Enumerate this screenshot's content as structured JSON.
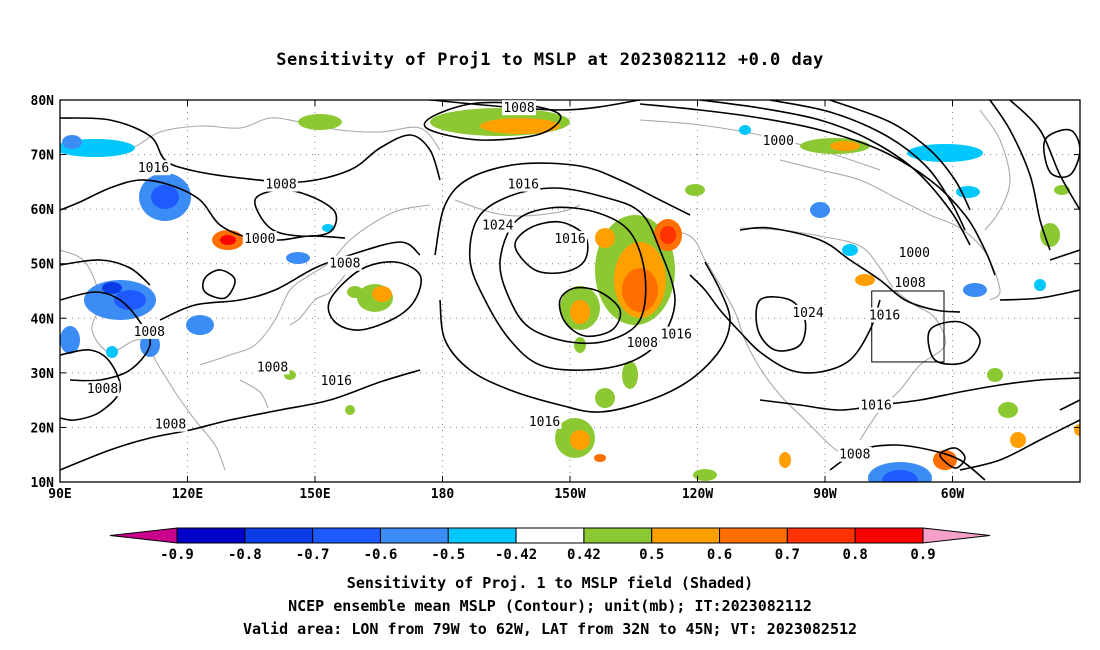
{
  "title": "Sensitivity of Proj1 to MSLP at 2023082112 +0.0 day",
  "lat_labels": [
    "80N",
    "70N",
    "60N",
    "50N",
    "40N",
    "30N",
    "20N",
    "10N"
  ],
  "lon_labels": [
    "90E",
    "120E",
    "150E",
    "180",
    "150W",
    "120W",
    "90W",
    "60W"
  ],
  "contour_labels": [
    {
      "text": "1008",
      "lon": 198,
      "lat": 78.5
    },
    {
      "text": "1000",
      "lon": 259,
      "lat": 72.5
    },
    {
      "text": "1016",
      "lon": 112,
      "lat": 67.5
    },
    {
      "text": "1008",
      "lon": 142,
      "lat": 64.5
    },
    {
      "text": "1016",
      "lon": 199,
      "lat": 64.5
    },
    {
      "text": "1000",
      "lon": 137,
      "lat": 54.5
    },
    {
      "text": "1024",
      "lon": 193,
      "lat": 57.0
    },
    {
      "text": "1016",
      "lon": 210,
      "lat": 54.5
    },
    {
      "text": "1000",
      "lon": 291,
      "lat": 52.0
    },
    {
      "text": "1008",
      "lon": 157,
      "lat": 50.0
    },
    {
      "text": "1008",
      "lon": 290,
      "lat": 46.5
    },
    {
      "text": "1024",
      "lon": 266,
      "lat": 41.0
    },
    {
      "text": "1016",
      "lon": 284,
      "lat": 40.5
    },
    {
      "text": "1008",
      "lon": 111,
      "lat": 37.5
    },
    {
      "text": "1016",
      "lon": 235,
      "lat": 37.0
    },
    {
      "text": "1008",
      "lon": 227,
      "lat": 35.5
    },
    {
      "text": "1008",
      "lon": 140,
      "lat": 31.0
    },
    {
      "text": "1016",
      "lon": 155,
      "lat": 28.5
    },
    {
      "text": "1008",
      "lon": 100,
      "lat": 27.0
    },
    {
      "text": "1016",
      "lon": 282,
      "lat": 24.0
    },
    {
      "text": "1016",
      "lon": 204,
      "lat": 21.0
    },
    {
      "text": "1008",
      "lon": 116,
      "lat": 20.5
    },
    {
      "text": "1008",
      "lon": 277,
      "lat": 15.0
    }
  ],
  "valid_area_box": {
    "lon_min": 281,
    "lon_max": 298,
    "lat_min": 32,
    "lat_max": 45
  },
  "colorbar": {
    "labels": [
      "-0.9",
      "-0.8",
      "-0.7",
      "-0.6",
      "-0.5",
      "-0.42",
      "0.42",
      "0.5",
      "0.6",
      "0.7",
      "0.8",
      "0.9"
    ],
    "colors": [
      "#c8008c",
      "#0000c8",
      "#0a3ce6",
      "#1e5aff",
      "#3c8cf5",
      "#00c8ff",
      "#ffffff",
      "#8cc832",
      "#ffa000",
      "#ff6e00",
      "#ff3200",
      "#ff0000",
      "#f5a0c8"
    ]
  },
  "captions": [
    "Sensitivity of Proj. 1 to MSLP field (Shaded)",
    "NCEP ensemble mean MSLP (Contour); unit(mb); IT:2023082112",
    "Valid area: LON from 79W to 62W, LAT from 32N to 45N; VT: 2023082512"
  ]
}
